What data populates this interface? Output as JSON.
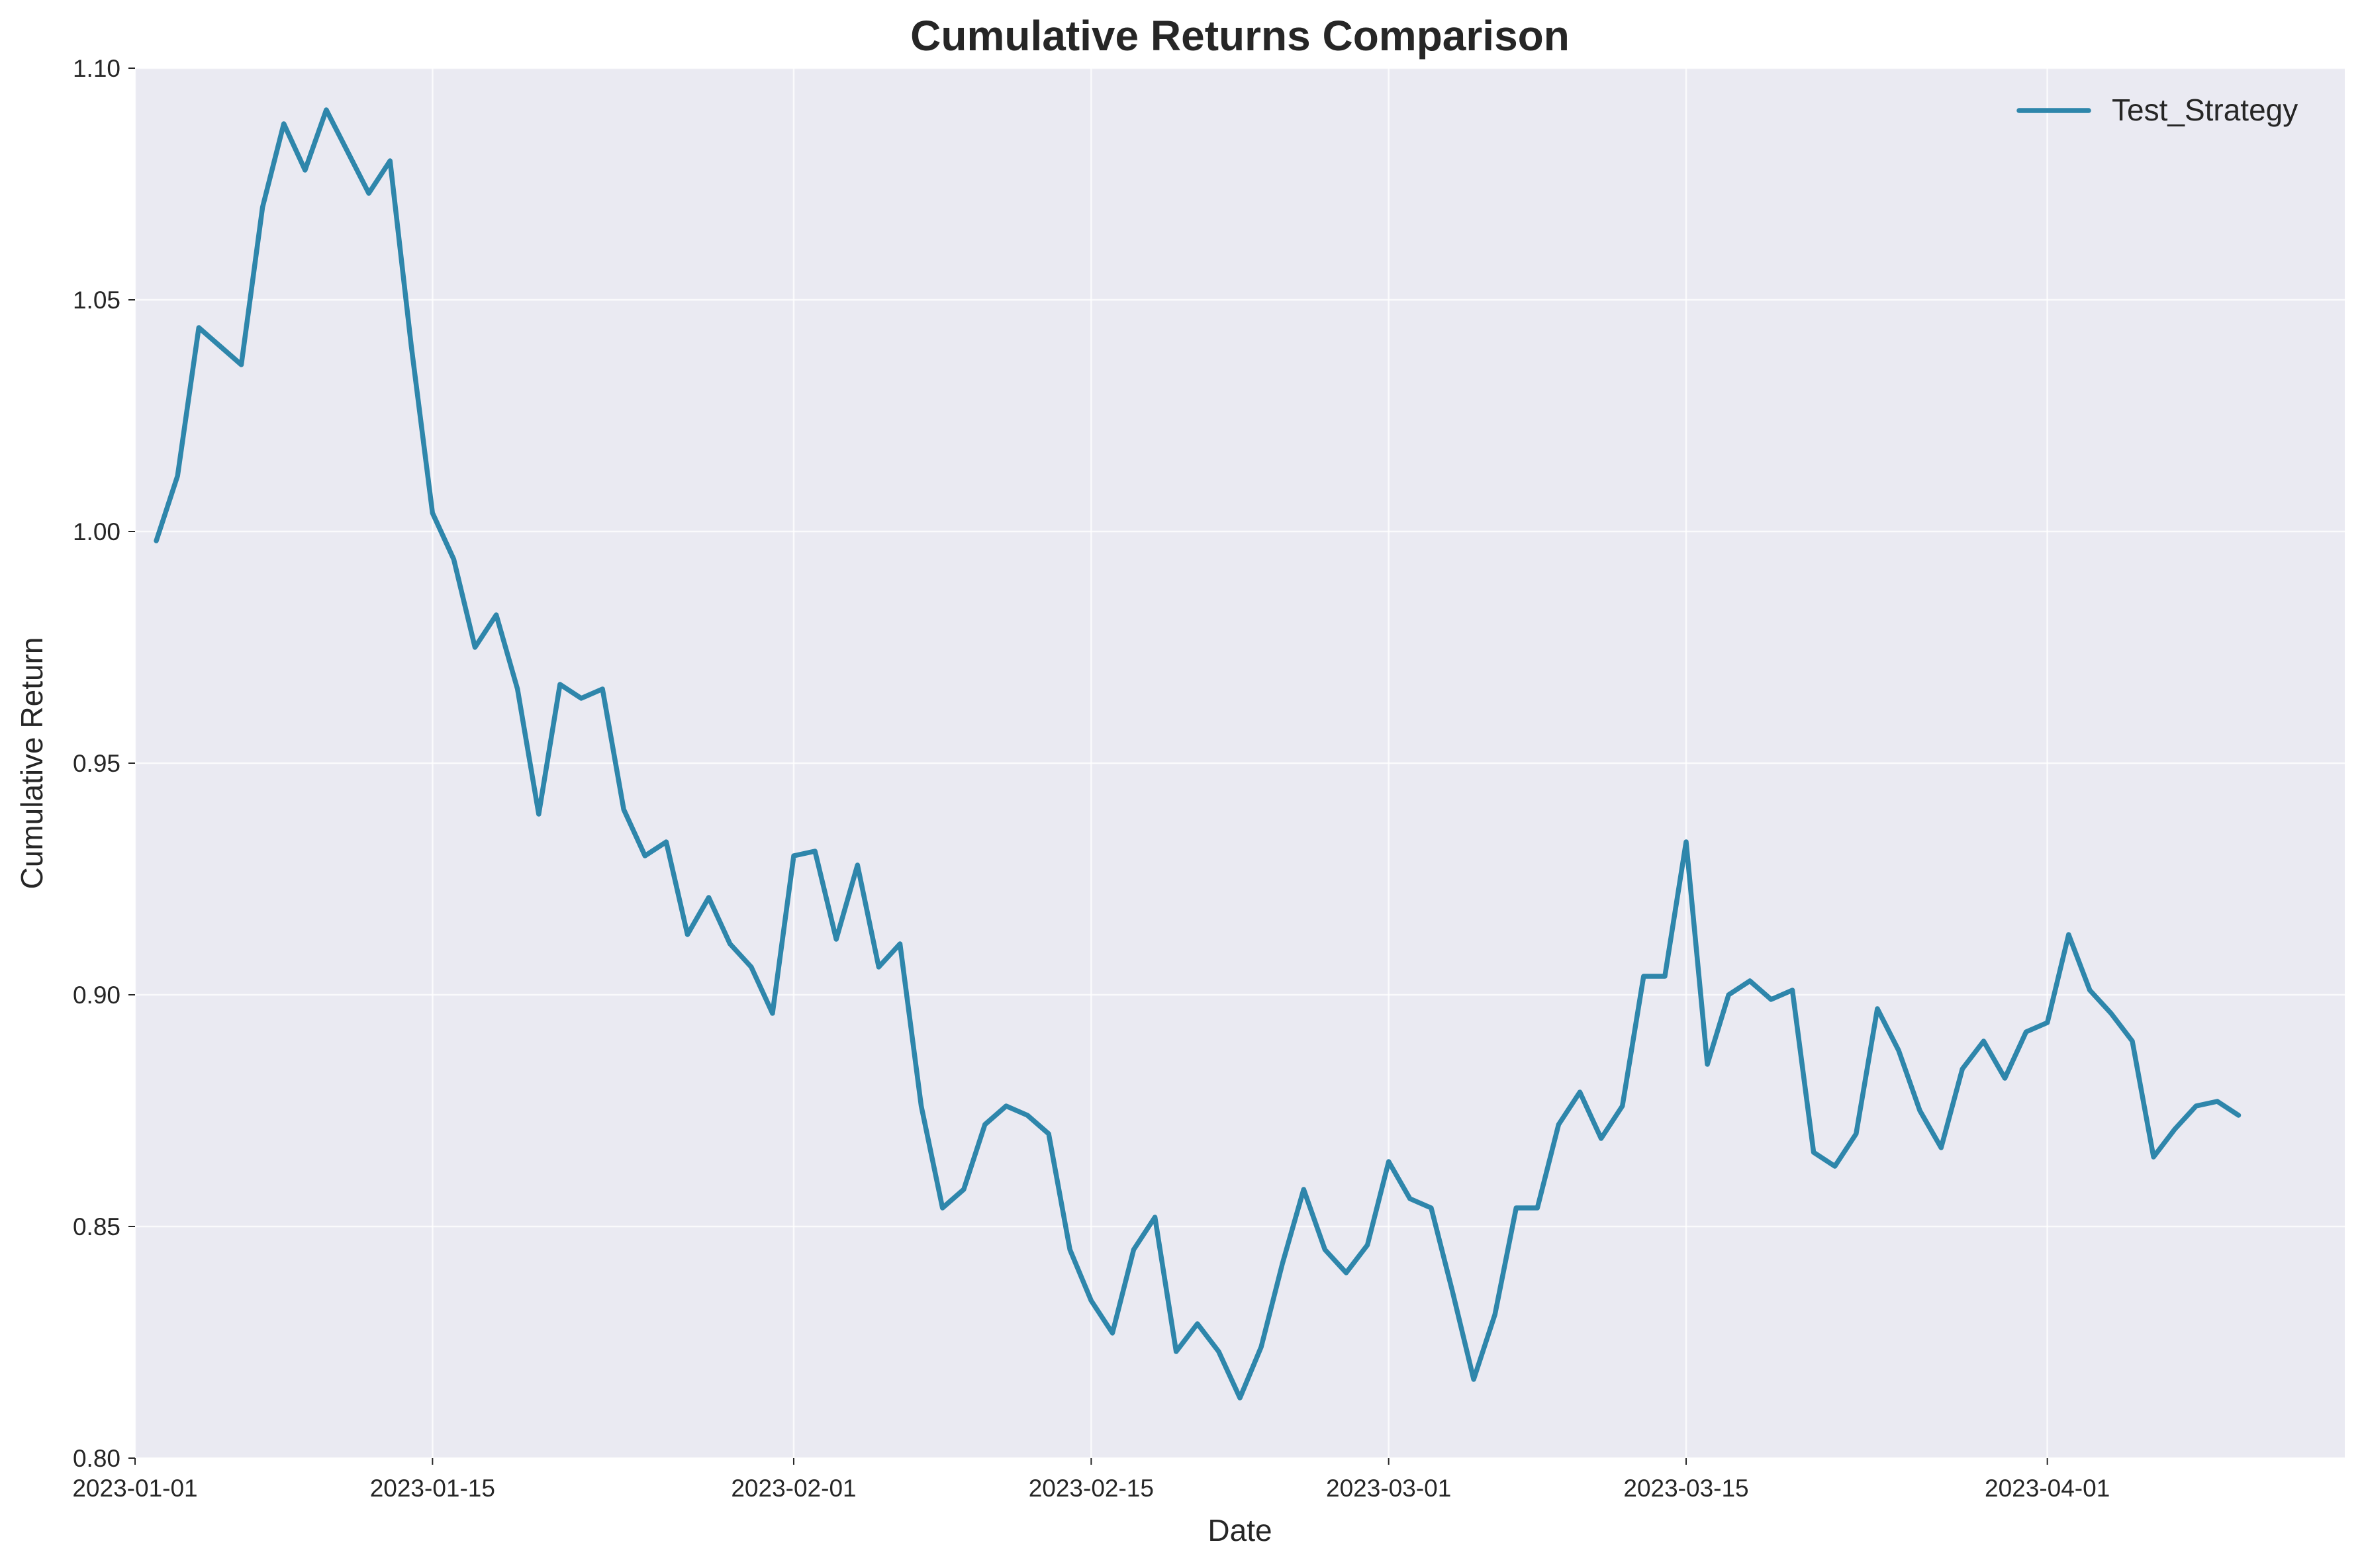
{
  "chart_data": {
    "type": "line",
    "title": "Cumulative Returns Comparison",
    "xlabel": "Date",
    "ylabel": "Cumulative Return",
    "x_start": "2023-01-02",
    "x_end": "2023-04-10",
    "xlim": [
      "2023-01-01",
      "2023-04-15"
    ],
    "ylim": [
      0.8,
      1.1
    ],
    "x_ticks": [
      "2023-01-01",
      "2023-01-15",
      "2023-02-01",
      "2023-02-15",
      "2023-03-01",
      "2023-03-15",
      "2023-04-01"
    ],
    "y_ticks": [
      0.8,
      0.85,
      0.9,
      0.95,
      1.0,
      1.05,
      1.1
    ],
    "y_tick_labels": [
      "0.80",
      "0.85",
      "0.90",
      "0.95",
      "1.00",
      "1.05",
      "1.10"
    ],
    "grid": true,
    "legend": "top-right",
    "series": [
      {
        "name": "Test_Strategy",
        "color": "#2e86ab",
        "values": [
          0.998,
          1.012,
          1.044,
          1.04,
          1.036,
          1.07,
          1.088,
          1.078,
          1.091,
          1.082,
          1.073,
          1.08,
          1.04,
          1.004,
          0.994,
          0.975,
          0.982,
          0.966,
          0.939,
          0.967,
          0.964,
          0.966,
          0.94,
          0.93,
          0.933,
          0.913,
          0.921,
          0.911,
          0.906,
          0.896,
          0.93,
          0.931,
          0.912,
          0.928,
          0.906,
          0.911,
          0.876,
          0.854,
          0.858,
          0.872,
          0.876,
          0.874,
          0.87,
          0.845,
          0.834,
          0.827,
          0.845,
          0.852,
          0.823,
          0.829,
          0.823,
          0.813,
          0.824,
          0.842,
          0.858,
          0.845,
          0.84,
          0.846,
          0.864,
          0.856,
          0.854,
          0.836,
          0.817,
          0.831,
          0.854,
          0.854,
          0.872,
          0.879,
          0.869,
          0.876,
          0.904,
          0.904,
          0.933,
          0.885,
          0.9,
          0.903,
          0.899,
          0.901,
          0.866,
          0.863,
          0.87,
          0.897,
          0.888,
          0.875,
          0.867,
          0.884,
          0.89,
          0.882,
          0.892,
          0.894,
          0.913,
          0.901,
          0.896,
          0.89,
          0.865,
          0.871,
          0.876,
          0.877,
          0.874
        ]
      }
    ]
  }
}
